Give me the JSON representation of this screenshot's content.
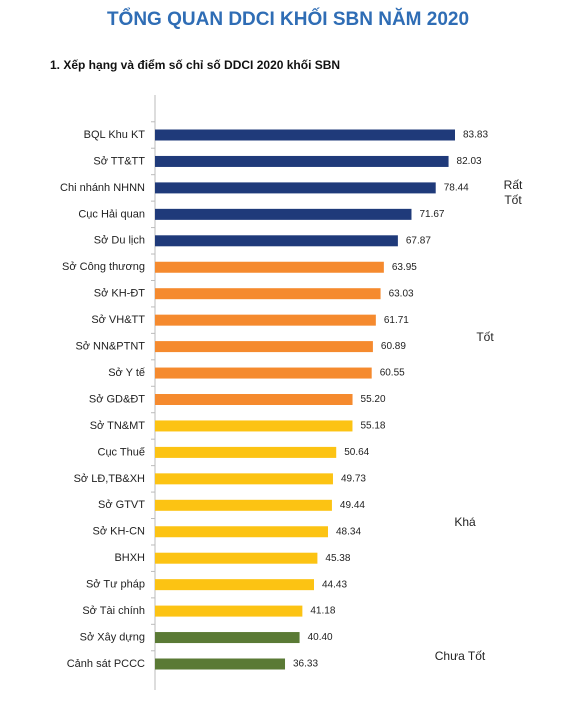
{
  "chart_data": {
    "type": "bar",
    "orientation": "horizontal",
    "title": "TỔNG QUAN DDCI KHỐI SBN NĂM 2020",
    "subtitle": "1. Xếp hạng và điểm số chỉ số DDCI 2020 khối SBN",
    "categories": [
      "BQL Khu KT",
      "Sở TT&TT",
      "Chi nhánh NHNN",
      "Cục Hải quan",
      "Sở Du lịch",
      "Sở Công thương",
      "Sở KH-ĐT",
      "Sở VH&TT",
      "Sở NN&PTNT",
      "Sở Y tế",
      "Sở GD&ĐT",
      "Sở TN&MT",
      "Cục Thuế",
      "Sở LĐ,TB&XH",
      "Sở GTVT",
      "Sở KH-CN",
      "BHXH",
      "Sở Tư pháp",
      "Sở Tài chính",
      "Sở Xây dựng",
      "Cảnh sát PCCC"
    ],
    "values": [
      83.83,
      82.03,
      78.44,
      71.67,
      67.87,
      63.95,
      63.03,
      61.71,
      60.89,
      60.55,
      55.2,
      55.18,
      50.64,
      49.73,
      49.44,
      48.34,
      45.38,
      44.43,
      41.18,
      40.4,
      36.33
    ],
    "value_labels": [
      "83.83",
      "82.03",
      "78.44",
      "71.67",
      "67.87",
      "63.95",
      "63.03",
      "61.71",
      "60.89",
      "60.55",
      "55.20",
      "55.18",
      "50.64",
      "49.73",
      "49.44",
      "48.34",
      "45.38",
      "44.43",
      "41.18",
      "40.40",
      "36.33"
    ],
    "colors": [
      "#1f3a7a",
      "#1f3a7a",
      "#1f3a7a",
      "#1f3a7a",
      "#1f3a7a",
      "#f58a2e",
      "#f58a2e",
      "#f58a2e",
      "#f58a2e",
      "#f58a2e",
      "#f58a2e",
      "#fcc313",
      "#fcc313",
      "#fcc313",
      "#fcc313",
      "#fcc313",
      "#fcc313",
      "#fcc313",
      "#fcc313",
      "#5a7a35",
      "#5a7a35"
    ],
    "annotations": [
      "Rất Tốt",
      "Tốt",
      "Khá",
      "Chưa Tốt"
    ]
  }
}
